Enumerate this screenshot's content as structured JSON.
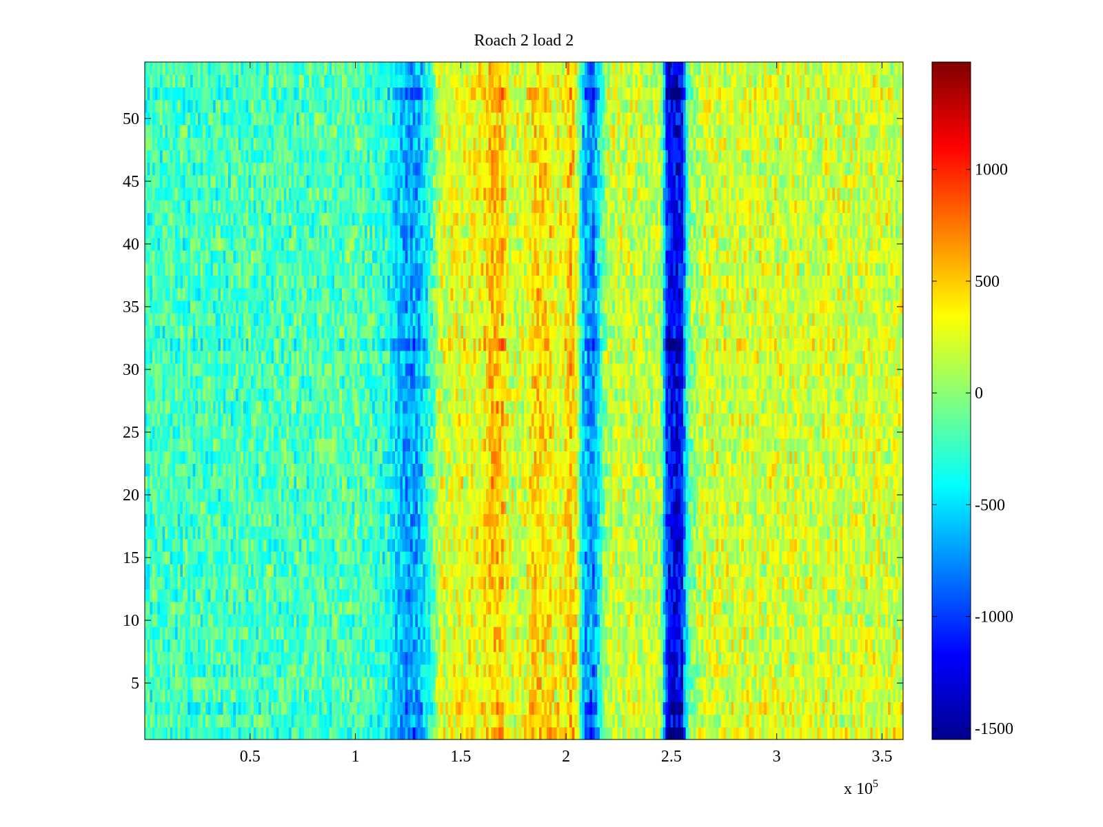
{
  "chart_data": {
    "type": "heatmap",
    "title": "Roach 2 load 2",
    "xlabel": "",
    "ylabel": "",
    "x_multiplier_label": "x 10",
    "x_multiplier_exponent": "5",
    "xlim": [
      0,
      360000
    ],
    "ylim": [
      0.5,
      54.5
    ],
    "rows": 54,
    "columns": 300,
    "x_ticks": [
      {
        "value": 0.5,
        "label": "0.5"
      },
      {
        "value": 1,
        "label": "1"
      },
      {
        "value": 1.5,
        "label": "1.5"
      },
      {
        "value": 2,
        "label": "2"
      },
      {
        "value": 2.5,
        "label": "2.5"
      },
      {
        "value": 3,
        "label": "3"
      },
      {
        "value": 3.5,
        "label": "3.5"
      }
    ],
    "y_ticks": [
      {
        "value": 5,
        "label": "5"
      },
      {
        "value": 10,
        "label": "10"
      },
      {
        "value": 15,
        "label": "15"
      },
      {
        "value": 20,
        "label": "20"
      },
      {
        "value": 25,
        "label": "25"
      },
      {
        "value": 30,
        "label": "30"
      },
      {
        "value": 35,
        "label": "35"
      },
      {
        "value": 40,
        "label": "40"
      },
      {
        "value": 45,
        "label": "45"
      },
      {
        "value": 50,
        "label": "50"
      }
    ],
    "colorbar": {
      "range": [
        -1550,
        1480
      ],
      "colormap": "jet",
      "ticks": [
        {
          "value": 1000,
          "label": "1000"
        },
        {
          "value": 500,
          "label": "500"
        },
        {
          "value": 0,
          "label": "0"
        },
        {
          "value": -500,
          "label": "-500"
        },
        {
          "value": -1000,
          "label": "-1000"
        },
        {
          "value": -1500,
          "label": "-1500"
        }
      ]
    },
    "column_profile_x_e5": [
      0.0,
      0.5,
      1.0,
      1.15,
      1.2,
      1.25,
      1.3,
      1.35,
      1.4,
      1.5,
      1.6,
      1.65,
      1.7,
      1.73,
      1.8,
      1.85,
      1.9,
      1.95,
      2.0,
      2.02,
      2.05,
      2.08,
      2.1,
      2.13,
      2.16,
      2.2,
      2.35,
      2.45,
      2.48,
      2.52,
      2.55,
      2.58,
      2.65,
      3.0,
      3.6
    ],
    "column_profile_mean": [
      -230,
      -200,
      -170,
      -280,
      -550,
      -700,
      -650,
      -300,
      200,
      260,
      320,
      500,
      500,
      200,
      200,
      450,
      420,
      280,
      320,
      560,
      280,
      -550,
      -700,
      -800,
      -300,
      170,
      170,
      100,
      -1100,
      -1250,
      -1150,
      -100,
      200,
      210,
      200
    ],
    "bright_rows": [
      1,
      3,
      32,
      52
    ]
  }
}
